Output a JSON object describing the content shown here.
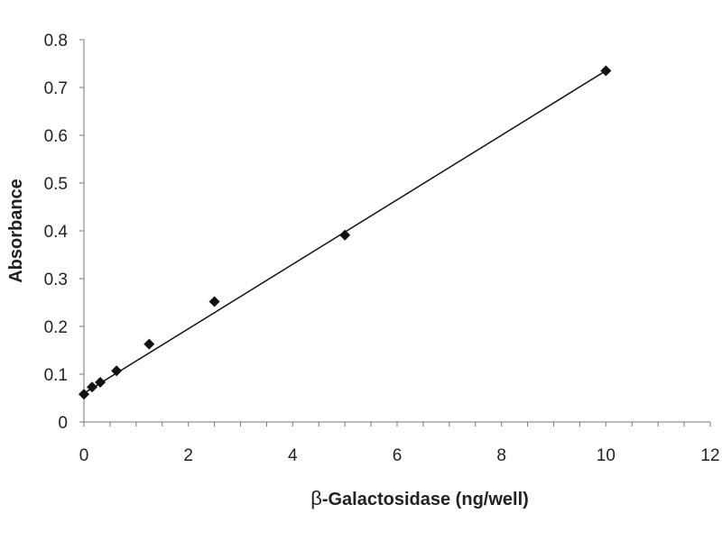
{
  "chart_data": {
    "type": "scatter",
    "title": "",
    "xlabel_prefix": "β",
    "xlabel_text": "-Galactosidase (ng/well)",
    "ylabel": "Absorbance",
    "xlim": [
      0,
      12
    ],
    "ylim": [
      0,
      0.8
    ],
    "xticks": [
      0,
      2,
      4,
      6,
      8,
      10,
      12
    ],
    "xtick_labels": [
      "0",
      "2",
      "4",
      "6",
      "8",
      "10",
      "12"
    ],
    "yticks": [
      0,
      0.1,
      0.2,
      0.3,
      0.4,
      0.5,
      0.6,
      0.7,
      0.8
    ],
    "ytick_labels": [
      "0",
      "0.1",
      "0.2",
      "0.3",
      "0.4",
      "0.5",
      "0.6",
      "0.7",
      "0.8"
    ],
    "x_minor_step": 0.5,
    "grid": false,
    "legend": "none",
    "marker": "diamond",
    "marker_color": "#111111",
    "series": [
      {
        "x": [
          0,
          0.156,
          0.3125,
          0.625,
          1.25,
          2.5,
          5,
          10
        ],
        "y": [
          0.058,
          0.073,
          0.083,
          0.107,
          0.163,
          0.252,
          0.391,
          0.735
        ]
      }
    ],
    "trendline": {
      "type": "linear",
      "x": [
        0,
        10
      ],
      "y": [
        0.06,
        0.735
      ]
    }
  }
}
